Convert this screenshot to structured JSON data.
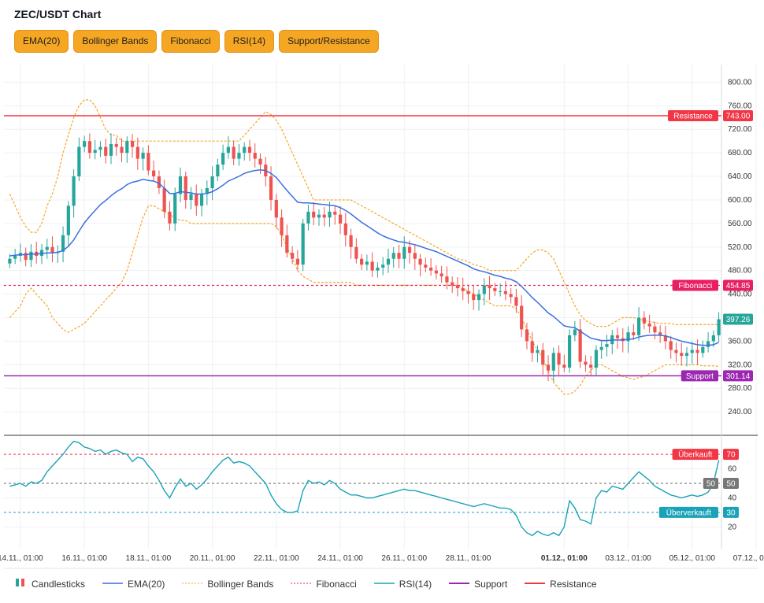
{
  "title": "ZEC/USDT Chart",
  "toolbar": [
    {
      "label": "EMA(20)"
    },
    {
      "label": "Bollinger Bands"
    },
    {
      "label": "Fibonacci"
    },
    {
      "label": "RSI(14)"
    },
    {
      "label": "Support/Resistance"
    }
  ],
  "legend": {
    "candles": "Candlesticks",
    "ema": "EMA(20)",
    "bb": "Bollinger Bands",
    "fib": "Fibonacci",
    "rsi": "RSI(14)",
    "support": "Support",
    "resistance": "Resistance"
  },
  "colors": {
    "up": "#26a69a",
    "down": "#ef5350",
    "ema": "#3b6fe0",
    "bb": "#f5a623",
    "fib": "#e91e63",
    "rsi": "#1aa3b8",
    "support": "#9c27b0",
    "resistance": "#f23645"
  },
  "chart_data": {
    "type": "candlestick",
    "title": "ZEC/USDT Chart",
    "price_axis": {
      "min": 200,
      "max": 830,
      "ticks": [
        "800.00",
        "760.00",
        "720.00",
        "680.00",
        "640.00",
        "600.00",
        "560.00",
        "520.00",
        "480.00",
        "440.00",
        "400.00",
        "360.00",
        "320.00",
        "280.00",
        "240.00"
      ]
    },
    "rsi_axis": {
      "min": 5,
      "max": 82,
      "ticks": [
        "60",
        "40",
        "20"
      ]
    },
    "x_ticks": [
      {
        "i": 2,
        "label": "14.11., 01:00",
        "bold": false
      },
      {
        "i": 14,
        "label": "16.11., 01:00",
        "bold": false
      },
      {
        "i": 26,
        "label": "18.11., 01:00",
        "bold": false
      },
      {
        "i": 38,
        "label": "20.11., 01:00",
        "bold": false
      },
      {
        "i": 50,
        "label": "22.11., 01:00",
        "bold": false
      },
      {
        "i": 62,
        "label": "24.11., 01:00",
        "bold": false
      },
      {
        "i": 74,
        "label": "26.11., 01:00",
        "bold": false
      },
      {
        "i": 86,
        "label": "28.11., 01:00",
        "bold": false
      },
      {
        "i": 104,
        "label": "01.12., 01:00",
        "bold": true
      },
      {
        "i": 116,
        "label": "03.12., 01:00",
        "bold": false
      },
      {
        "i": 128,
        "label": "05.12., 01:00",
        "bold": false
      },
      {
        "i": 140,
        "label": "07.12., 01:00",
        "bold": false
      }
    ],
    "closes": [
      500,
      505,
      510,
      498,
      512,
      505,
      515,
      520,
      510,
      512,
      540,
      590,
      640,
      690,
      700,
      680,
      685,
      690,
      675,
      695,
      690,
      680,
      700,
      690,
      670,
      680,
      650,
      640,
      620,
      580,
      560,
      610,
      640,
      600,
      610,
      590,
      610,
      620,
      640,
      660,
      680,
      690,
      670,
      680,
      690,
      680,
      670,
      660,
      640,
      600,
      570,
      540,
      510,
      500,
      490,
      560,
      580,
      570,
      575,
      570,
      580,
      575,
      560,
      540,
      520,
      500,
      490,
      495,
      480,
      485,
      490,
      500,
      510,
      500,
      520,
      510,
      500,
      490,
      485,
      480,
      475,
      470,
      460,
      455,
      450,
      445,
      440,
      430,
      440,
      455,
      450,
      445,
      445,
      440,
      435,
      420,
      380,
      360,
      340,
      345,
      320,
      310,
      340,
      320,
      315,
      370,
      380,
      325,
      320,
      315,
      345,
      350,
      355,
      370,
      365,
      360,
      375,
      370,
      400,
      390,
      385,
      375,
      370,
      360,
      345,
      340,
      335,
      340,
      345,
      340,
      350,
      360,
      370,
      397.26
    ],
    "ema20": [
      505,
      506,
      507,
      507,
      508,
      508,
      509,
      510,
      510,
      511,
      514,
      521,
      532,
      547,
      561,
      572,
      582,
      592,
      599,
      607,
      614,
      619,
      626,
      630,
      632,
      635,
      633,
      632,
      628,
      620,
      611,
      611,
      614,
      613,
      612,
      610,
      610,
      611,
      614,
      619,
      625,
      632,
      636,
      640,
      645,
      648,
      650,
      651,
      650,
      645,
      638,
      627,
      616,
      606,
      596,
      595,
      595,
      594,
      593,
      592,
      591,
      590,
      587,
      582,
      576,
      569,
      562,
      556,
      550,
      544,
      539,
      535,
      532,
      529,
      528,
      526,
      524,
      521,
      518,
      515,
      512,
      508,
      504,
      500,
      496,
      492,
      488,
      483,
      480,
      478,
      475,
      472,
      470,
      467,
      465,
      461,
      453,
      444,
      434,
      426,
      417,
      408,
      402,
      394,
      386,
      384,
      383,
      377,
      371,
      365,
      363,
      361,
      361,
      362,
      362,
      362,
      363,
      364,
      367,
      369,
      370,
      370,
      370,
      369,
      366,
      363,
      360,
      358,
      356,
      354,
      353,
      353,
      354,
      358
    ],
    "bb_upper": [
      610,
      590,
      570,
      555,
      545,
      545,
      560,
      590,
      610,
      640,
      680,
      710,
      740,
      760,
      770,
      770,
      760,
      740,
      720,
      710,
      710,
      700,
      700,
      700,
      700,
      700,
      700,
      700,
      700,
      700,
      700,
      700,
      700,
      700,
      700,
      700,
      700,
      700,
      700,
      700,
      700,
      700,
      700,
      700,
      710,
      720,
      730,
      740,
      750,
      745,
      735,
      720,
      700,
      680,
      660,
      640,
      620,
      600,
      600,
      600,
      600,
      600,
      600,
      600,
      600,
      595,
      590,
      585,
      580,
      575,
      570,
      565,
      560,
      555,
      550,
      545,
      540,
      535,
      530,
      525,
      520,
      515,
      510,
      505,
      500,
      498,
      495,
      490,
      488,
      485,
      480,
      480,
      480,
      480,
      480,
      480,
      490,
      500,
      510,
      515,
      515,
      510,
      500,
      480,
      460,
      440,
      420,
      405,
      395,
      390,
      385,
      385,
      385,
      390,
      395,
      400,
      400,
      400,
      398,
      395,
      393,
      392,
      390,
      390,
      390,
      388,
      388,
      388,
      388,
      388,
      388,
      388,
      388,
      388
    ],
    "bb_lower": [
      400,
      410,
      420,
      440,
      450,
      440,
      430,
      420,
      400,
      390,
      380,
      375,
      380,
      385,
      390,
      400,
      410,
      420,
      430,
      440,
      450,
      460,
      480,
      510,
      540,
      570,
      590,
      590,
      585,
      580,
      575,
      570,
      565,
      565,
      560,
      560,
      560,
      560,
      560,
      560,
      560,
      560,
      560,
      560,
      560,
      560,
      560,
      560,
      560,
      560,
      555,
      540,
      520,
      500,
      480,
      470,
      465,
      460,
      460,
      460,
      460,
      460,
      460,
      460,
      460,
      455,
      455,
      455,
      455,
      455,
      455,
      455,
      455,
      455,
      455,
      455,
      455,
      455,
      455,
      455,
      455,
      455,
      455,
      455,
      455,
      450,
      445,
      440,
      435,
      430,
      425,
      420,
      420,
      420,
      420,
      415,
      400,
      380,
      360,
      345,
      330,
      310,
      290,
      280,
      270,
      270,
      275,
      285,
      300,
      310,
      320,
      320,
      315,
      310,
      305,
      300,
      298,
      295,
      298,
      300,
      305,
      310,
      315,
      320,
      320,
      320,
      320,
      320,
      320,
      320,
      318,
      318,
      318,
      317
    ],
    "rsi": [
      48,
      49,
      50,
      48,
      51,
      50,
      52,
      58,
      62,
      66,
      70,
      75,
      79,
      78,
      75,
      74,
      72,
      73,
      70,
      72,
      73,
      71,
      70,
      65,
      68,
      67,
      62,
      58,
      52,
      45,
      40,
      47,
      53,
      48,
      50,
      46,
      49,
      53,
      58,
      62,
      66,
      68,
      64,
      65,
      64,
      62,
      58,
      54,
      50,
      42,
      36,
      32,
      30,
      30,
      31,
      45,
      52,
      50,
      51,
      49,
      52,
      50,
      46,
      44,
      42,
      42,
      41,
      40,
      40,
      41,
      42,
      43,
      44,
      45,
      46,
      45,
      45,
      44,
      43,
      42,
      41,
      40,
      39,
      38,
      37,
      36,
      35,
      34,
      35,
      36,
      35,
      34,
      33,
      33,
      32,
      28,
      20,
      16,
      14,
      17,
      15,
      14,
      16,
      14,
      20,
      38,
      33,
      25,
      24,
      22,
      40,
      45,
      44,
      48,
      47,
      46,
      50,
      54,
      58,
      55,
      52,
      48,
      46,
      44,
      42,
      41,
      40,
      41,
      42,
      41,
      42,
      44,
      50,
      66.0
    ],
    "levels": {
      "resistance": {
        "label": "Resistance",
        "value": "743.00",
        "v": 743.0
      },
      "fibonacci": {
        "label": "Fibonacci",
        "value": "454.85",
        "v": 454.85
      },
      "support": {
        "label": "Support",
        "value": "301.14",
        "v": 301.14
      },
      "current": {
        "value": "397.26",
        "v": 397.26
      }
    },
    "rsi_levels": {
      "overbought": {
        "label": "Überkauft",
        "value": "70",
        "v": 70
      },
      "mid": {
        "label": "50",
        "value": "50",
        "v": 50
      },
      "oversold": {
        "label": "Überverkauft",
        "value": "30",
        "v": 30
      }
    }
  }
}
